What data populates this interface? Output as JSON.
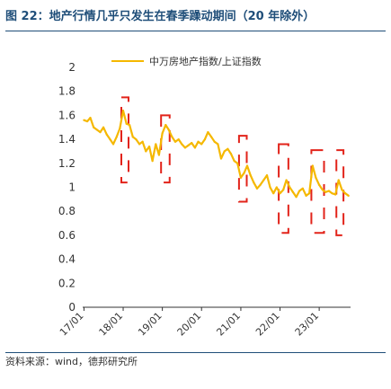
{
  "figure": {
    "title": "图 22：地产行情几乎只发生在春季躁动期间（20 年除外）",
    "source": "资料来源：wind，德邦研究所"
  },
  "chart_data": {
    "type": "line",
    "title": "",
    "xlabel": "",
    "ylabel": "",
    "ylim": [
      0,
      2
    ],
    "yticks": [
      "0",
      "0.2",
      "0.4",
      "0.6",
      "0.8",
      "1",
      "1.2",
      "1.4",
      "1.6",
      "1.8",
      "2"
    ],
    "xticks": [
      "17/01",
      "18/01",
      "19/01",
      "20/01",
      "21/01",
      "22/01",
      "23/01"
    ],
    "grid": false,
    "legend_position": "top",
    "series": [
      {
        "name": "中万房地产指数/上证指数",
        "color": "#f5b800",
        "points": [
          [
            "2017-01-01",
            1.56
          ],
          [
            "2017-02-01",
            1.55
          ],
          [
            "2017-03-01",
            1.58
          ],
          [
            "2017-04-01",
            1.5
          ],
          [
            "2017-05-01",
            1.48
          ],
          [
            "2017-06-01",
            1.46
          ],
          [
            "2017-07-01",
            1.5
          ],
          [
            "2017-08-01",
            1.44
          ],
          [
            "2017-09-01",
            1.4
          ],
          [
            "2017-10-01",
            1.36
          ],
          [
            "2017-11-01",
            1.42
          ],
          [
            "2017-12-01",
            1.49
          ],
          [
            "2018-01-01",
            1.64
          ],
          [
            "2018-02-01",
            1.53
          ],
          [
            "2018-03-01",
            1.52
          ],
          [
            "2018-04-01",
            1.42
          ],
          [
            "2018-05-01",
            1.4
          ],
          [
            "2018-06-01",
            1.36
          ],
          [
            "2018-07-01",
            1.38
          ],
          [
            "2018-08-01",
            1.3
          ],
          [
            "2018-09-01",
            1.34
          ],
          [
            "2018-10-01",
            1.22
          ],
          [
            "2018-11-01",
            1.36
          ],
          [
            "2018-12-01",
            1.27
          ],
          [
            "2019-01-01",
            1.45
          ],
          [
            "2019-02-01",
            1.52
          ],
          [
            "2019-03-01",
            1.48
          ],
          [
            "2019-04-01",
            1.42
          ],
          [
            "2019-05-01",
            1.38
          ],
          [
            "2019-06-01",
            1.4
          ],
          [
            "2019-07-01",
            1.36
          ],
          [
            "2019-08-01",
            1.33
          ],
          [
            "2019-09-01",
            1.35
          ],
          [
            "2019-10-01",
            1.37
          ],
          [
            "2019-11-01",
            1.33
          ],
          [
            "2019-12-01",
            1.38
          ],
          [
            "2020-01-01",
            1.36
          ],
          [
            "2020-02-01",
            1.4
          ],
          [
            "2020-03-01",
            1.46
          ],
          [
            "2020-04-01",
            1.42
          ],
          [
            "2020-05-01",
            1.38
          ],
          [
            "2020-06-01",
            1.36
          ],
          [
            "2020-07-01",
            1.24
          ],
          [
            "2020-08-01",
            1.3
          ],
          [
            "2020-09-01",
            1.32
          ],
          [
            "2020-10-01",
            1.28
          ],
          [
            "2020-11-01",
            1.22
          ],
          [
            "2020-12-01",
            1.2
          ],
          [
            "2021-01-01",
            1.08
          ],
          [
            "2021-02-01",
            1.12
          ],
          [
            "2021-03-01",
            1.18
          ],
          [
            "2021-04-01",
            1.1
          ],
          [
            "2021-05-01",
            1.04
          ],
          [
            "2021-06-01",
            0.99
          ],
          [
            "2021-07-01",
            1.02
          ],
          [
            "2021-08-01",
            1.06
          ],
          [
            "2021-09-01",
            1.1
          ],
          [
            "2021-10-01",
            1.0
          ],
          [
            "2021-11-01",
            0.95
          ],
          [
            "2021-12-01",
            1.0
          ],
          [
            "2022-01-01",
            0.95
          ],
          [
            "2022-02-01",
            0.98
          ],
          [
            "2022-03-01",
            1.06
          ],
          [
            "2022-04-01",
            1.0
          ],
          [
            "2022-05-01",
            0.96
          ],
          [
            "2022-06-01",
            0.92
          ],
          [
            "2022-07-01",
            0.97
          ],
          [
            "2022-08-01",
            0.99
          ],
          [
            "2022-09-01",
            0.93
          ],
          [
            "2022-10-01",
            0.95
          ],
          [
            "2022-11-01",
            1.18
          ],
          [
            "2022-12-01",
            1.08
          ],
          [
            "2023-01-01",
            1.02
          ],
          [
            "2023-02-01",
            0.98
          ],
          [
            "2023-03-01",
            0.96
          ],
          [
            "2023-04-01",
            0.97
          ],
          [
            "2023-05-01",
            0.95
          ],
          [
            "2023-06-01",
            0.94
          ],
          [
            "2023-07-01",
            1.06
          ],
          [
            "2023-08-01",
            0.98
          ],
          [
            "2023-09-01",
            0.95
          ],
          [
            "2023-10-01",
            0.93
          ]
        ]
      }
    ],
    "highlight_periods": [
      {
        "start": "2017-12-15",
        "end": "2018-02-20",
        "top": 1.75,
        "bottom": 1.04
      },
      {
        "start": "2018-12-20",
        "end": "2019-03-10",
        "top": 1.6,
        "bottom": 1.04
      },
      {
        "start": "2020-12-15",
        "end": "2021-02-25",
        "top": 1.43,
        "bottom": 0.88
      },
      {
        "start": "2021-12-20",
        "end": "2022-03-20",
        "top": 1.36,
        "bottom": 0.62
      },
      {
        "start": "2022-10-20",
        "end": "2023-02-15",
        "top": 1.31,
        "bottom": 0.62
      },
      {
        "start": "2023-06-10",
        "end": "2023-08-15",
        "top": 1.31,
        "bottom": 0.6
      }
    ],
    "highlight_color": "#e2231a"
  }
}
